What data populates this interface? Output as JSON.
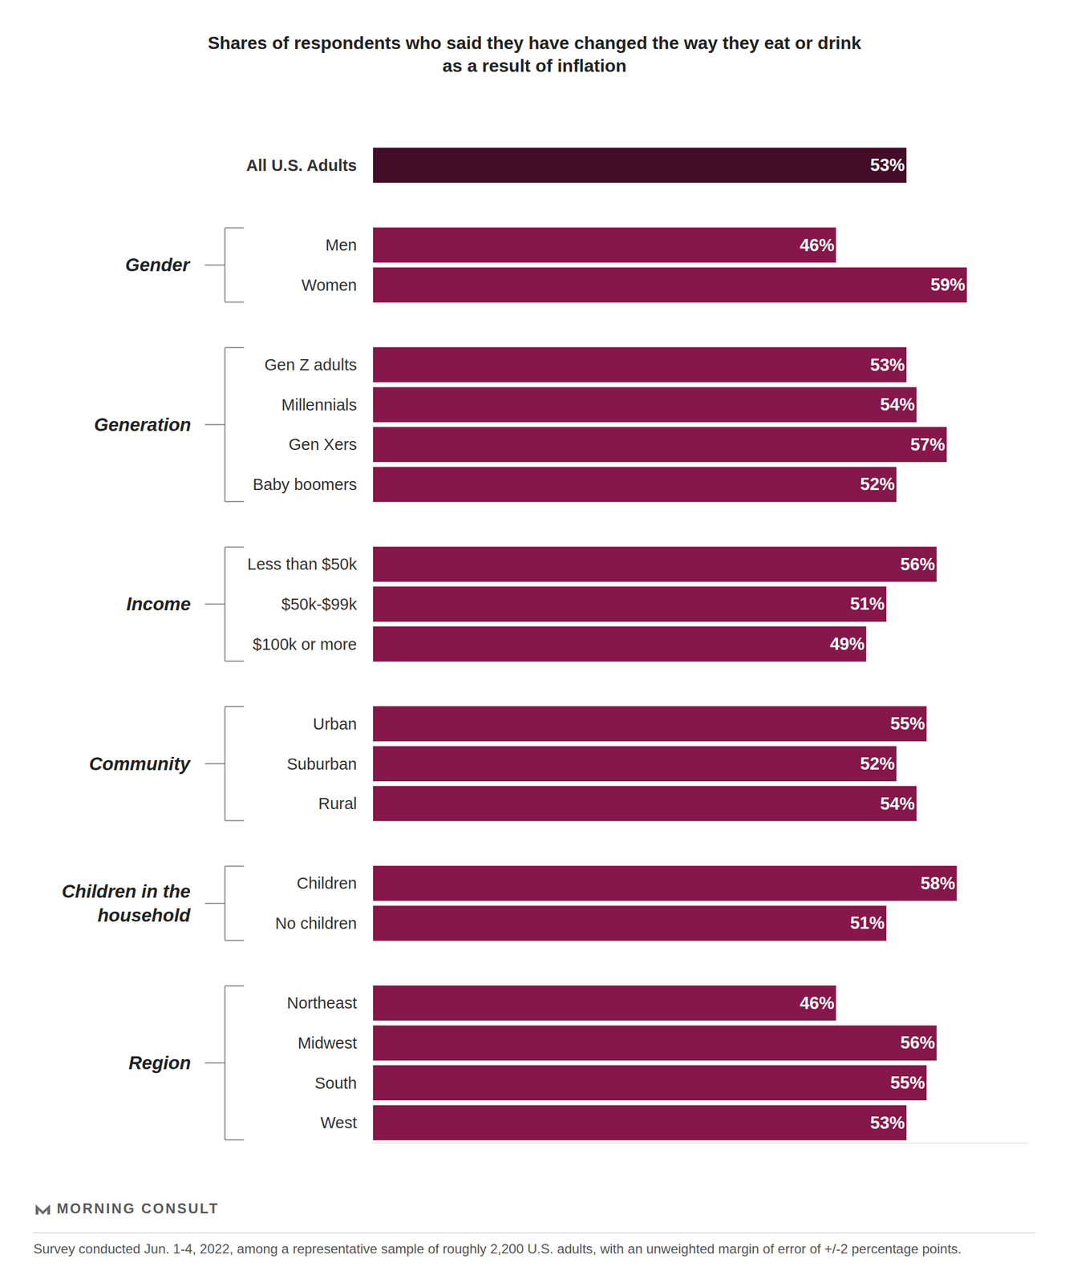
{
  "chart_data": {
    "type": "bar",
    "orientation": "horizontal",
    "title": "Shares of respondents who said they have changed the way they eat or drink\nas a result of inflation",
    "categories": [
      "All U.S. Adults",
      null,
      "Men",
      "Women",
      null,
      "Gen Z adults",
      "Millennials",
      "Gen Xers",
      "Baby boomers",
      null,
      "Less than $50k",
      "$50k-$99k",
      "$100k or more",
      null,
      "Urban",
      "Suburban",
      "Rural",
      null,
      "Children",
      "No children",
      null,
      "Northeast",
      "Midwest",
      "South",
      "West"
    ],
    "values": [
      53,
      null,
      46,
      59,
      null,
      53,
      54,
      57,
      52,
      null,
      56,
      51,
      49,
      null,
      55,
      52,
      54,
      null,
      58,
      51,
      null,
      46,
      56,
      55,
      53
    ],
    "value_labels": [
      "53%",
      null,
      "46%",
      "59%",
      null,
      "53%",
      "54%",
      "57%",
      "52%",
      null,
      "56%",
      "51%",
      "49%",
      null,
      "55%",
      "52%",
      "54%",
      null,
      "58%",
      "51%",
      null,
      "46%",
      "56%",
      "55%",
      "53%"
    ],
    "colors": [
      "#430d27",
      null,
      "#85174a",
      "#85174a",
      null,
      "#85174a",
      "#85174a",
      "#85174a",
      "#85174a",
      null,
      "#85174a",
      "#85174a",
      "#85174a",
      null,
      "#85174a",
      "#85174a",
      "#85174a",
      null,
      "#85174a",
      "#85174a",
      null,
      "#85174a",
      "#85174a",
      "#85174a",
      "#85174a"
    ],
    "groups": [
      {
        "label": "Gender",
        "members": [
          "Men",
          "Women"
        ]
      },
      {
        "label": "Generation",
        "members": [
          "Gen Z adults",
          "Millennials",
          "Gen Xers",
          "Baby boomers"
        ]
      },
      {
        "label": "Income",
        "members": [
          "Less than $50k",
          "$50k-$99k",
          "$100k or more"
        ]
      },
      {
        "label": "Community",
        "members": [
          "Urban",
          "Suburban",
          "Rural"
        ]
      },
      {
        "label": "Children in the\nhousehold",
        "members": [
          "Children",
          "No children"
        ]
      },
      {
        "label": "Region",
        "members": [
          "Northeast",
          "Midwest",
          "South",
          "West"
        ]
      }
    ],
    "xlim": [
      0,
      65
    ],
    "xticks": [],
    "grid": false,
    "data_labels": true,
    "tick_labels": "y",
    "source": "MORNING CONSULT",
    "note": "Survey conducted Jun. 1-4, 2022, among a representative sample of roughly 2,200 U.S. adults, with an unweighted margin of error of +/-2 percentage points."
  }
}
